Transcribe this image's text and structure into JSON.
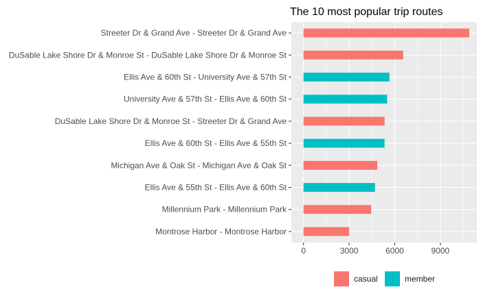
{
  "chart_data": {
    "type": "bar",
    "orientation": "horizontal",
    "title": "The 10 most popular trip routes",
    "xlabel": "",
    "ylabel": "",
    "xlim": [
      -800,
      11400
    ],
    "xticks": [
      0,
      3000,
      6000,
      9000
    ],
    "xtick_labels": [
      "0",
      "3000",
      "6000",
      "9000"
    ],
    "grid": true,
    "legend_position": "bottom",
    "colors": {
      "casual": "#F8766D",
      "member": "#00BFC4",
      "panel": "#EBEBEB",
      "grid": "#FFFFFF"
    },
    "legend": [
      {
        "key": "casual",
        "label": "casual"
      },
      {
        "key": "member",
        "label": "member"
      }
    ],
    "categories": [
      "Streeter Dr & Grand Ave - Streeter Dr & Grand Ave",
      "DuSable Lake Shore Dr & Monroe St - DuSable Lake Shore Dr & Monroe St",
      "Ellis Ave & 60th St - University Ave & 57th St",
      "University Ave & 57th St - Ellis Ave & 60th St",
      "DuSable Lake Shore Dr & Monroe St - Streeter Dr & Grand Ave",
      "Ellis Ave & 60th St - Ellis Ave & 55th St",
      "Michigan Ave & Oak St - Michigan Ave & Oak St",
      "Ellis Ave & 55th St - Ellis Ave & 60th St",
      "Millennium Park - Millennium Park",
      "Montrose Harbor - Montrose Harbor"
    ],
    "values": [
      10900,
      6550,
      5650,
      5500,
      5330,
      5330,
      4850,
      4700,
      4450,
      3000
    ],
    "groups": [
      "casual",
      "casual",
      "member",
      "member",
      "casual",
      "member",
      "casual",
      "member",
      "casual",
      "casual"
    ]
  }
}
